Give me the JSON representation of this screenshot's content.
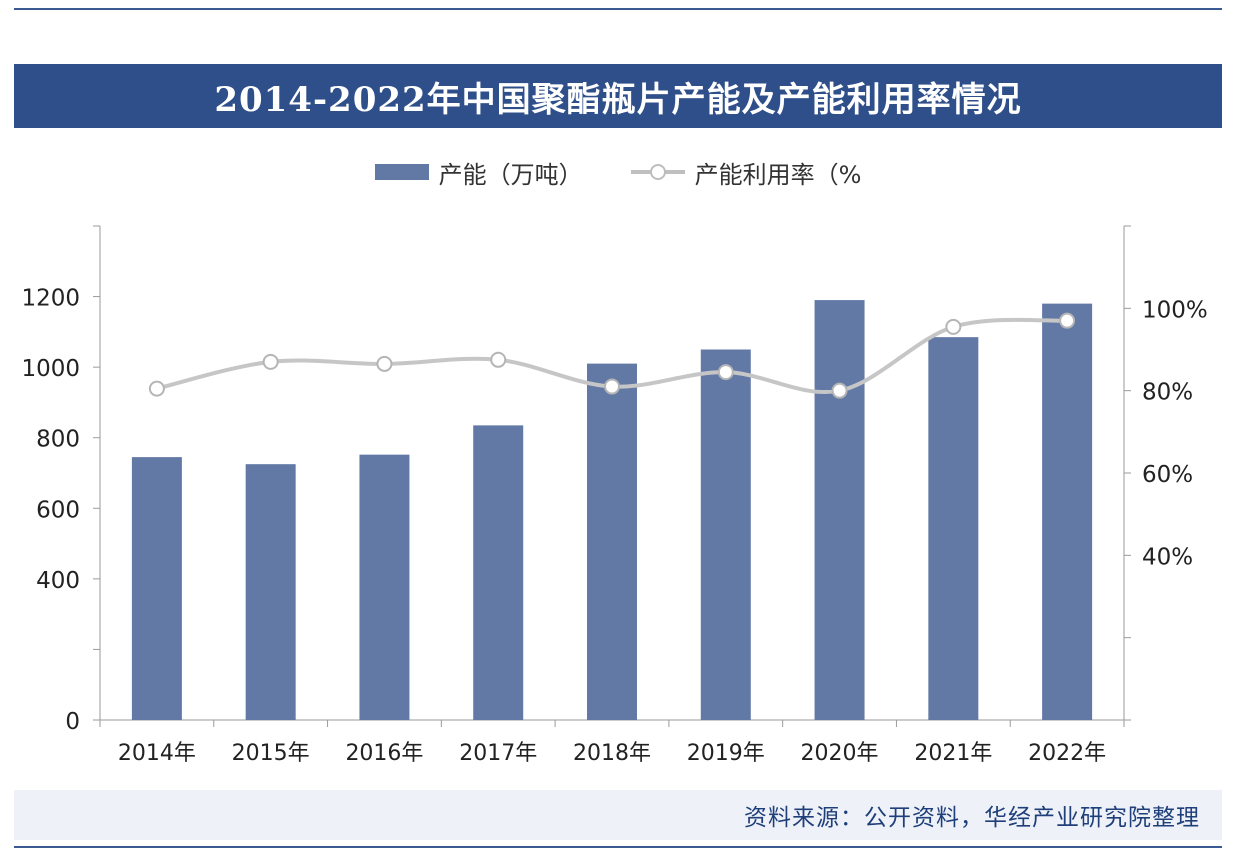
{
  "title": "2014-2022年中国聚酯瓶片产能及产能利用率情况",
  "legend": {
    "bar_label": "产能（万吨）",
    "line_label": "产能利用率（%"
  },
  "source": "资料来源：公开资料，华经产业研究院整理",
  "colors": {
    "bar": "#6279a6",
    "line": "#c6c6c6",
    "title_bg": "#2f4f8a"
  },
  "chart_data": {
    "type": "bar+line",
    "categories": [
      "2014年",
      "2015年",
      "2016年",
      "2017年",
      "2018年",
      "2019年",
      "2020年",
      "2021年",
      "2022年"
    ],
    "series": [
      {
        "name": "产能（万吨）",
        "type": "bar",
        "axis": "left",
        "values": [
          745,
          725,
          752,
          835,
          1010,
          1050,
          1190,
          1085,
          1180
        ]
      },
      {
        "name": "产能利用率（%",
        "type": "line",
        "axis": "right",
        "values": [
          80.5,
          87,
          86.5,
          87.5,
          81,
          84.5,
          80,
          95.5,
          97
        ]
      }
    ],
    "y_left": {
      "ticks": [
        0,
        400,
        600,
        800,
        1000,
        1200
      ],
      "labels": [
        "0",
        "400",
        "600",
        "800",
        "1000",
        "1200"
      ]
    },
    "y_right": {
      "ticks": [
        40,
        60,
        80,
        100
      ],
      "labels": [
        "40%",
        "60%",
        "80%",
        "100%"
      ]
    },
    "grid": false
  }
}
